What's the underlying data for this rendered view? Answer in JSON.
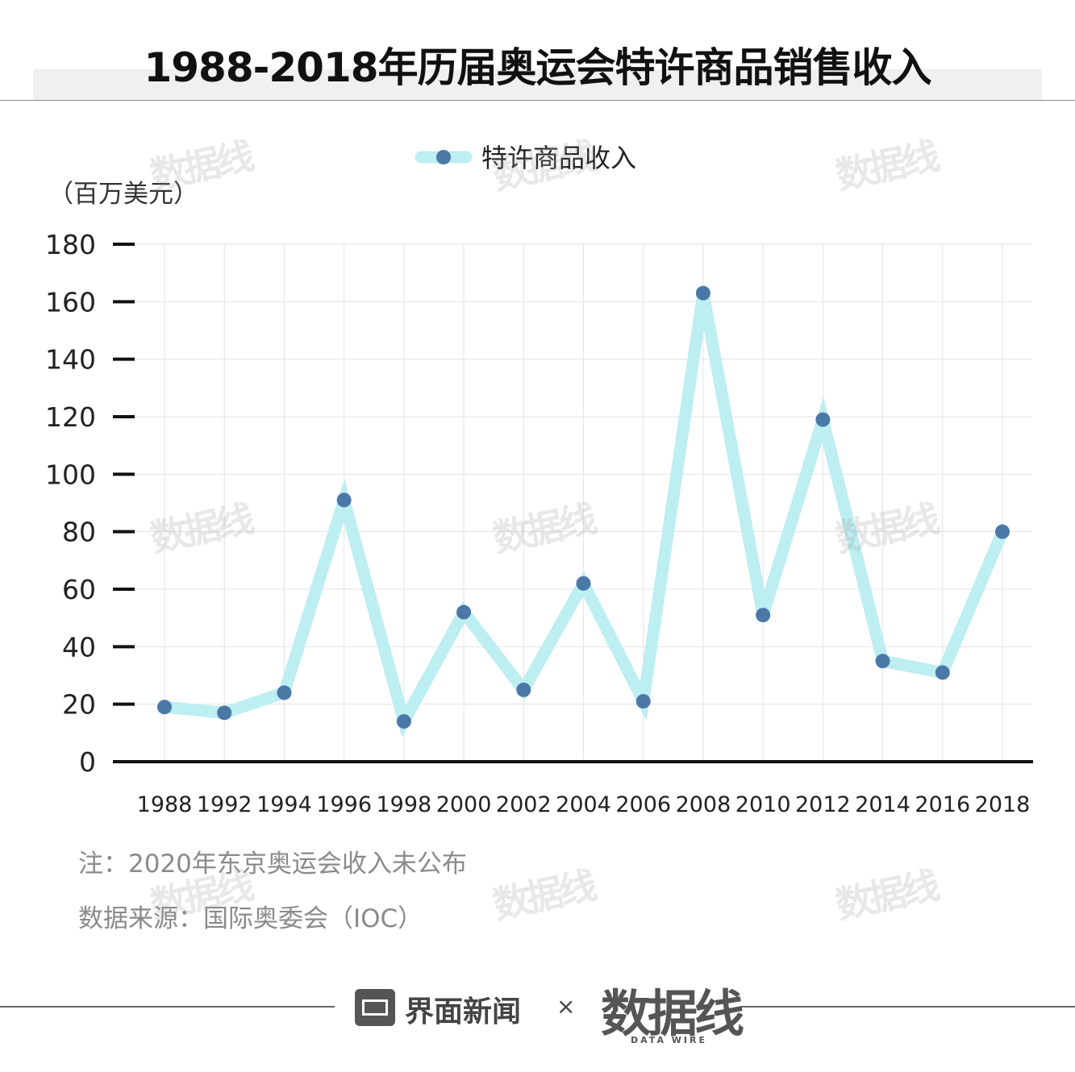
{
  "title": "1988-2018年历届奥运会特许商品销售收入",
  "unit_label": "（百万美元）",
  "colors": {
    "line": "#bdeef1",
    "marker": "#4a79a8",
    "axis": "#111111",
    "grid": "#e3e3e3"
  },
  "chart_data": {
    "type": "line",
    "title": "1988-2018年历届奥运会特许商品销售收入",
    "ylabel": "（百万美元）",
    "ylim": [
      0,
      180
    ],
    "yticks": [
      0,
      20,
      40,
      60,
      80,
      100,
      120,
      140,
      160,
      180
    ],
    "legend_position": "top-center",
    "grid": true,
    "categories": [
      "1988",
      "1992",
      "1994",
      "1996",
      "1998",
      "2000",
      "2002",
      "2004",
      "2006",
      "2008",
      "2010",
      "2012",
      "2014",
      "2016",
      "2018"
    ],
    "series": [
      {
        "name": "特许商品收入",
        "values": [
          19,
          17,
          24,
          91,
          14,
          52,
          25,
          62,
          21,
          163,
          51,
          119,
          35,
          31,
          80
        ]
      }
    ]
  },
  "notes": {
    "note": "注：2020年东京奥运会收入未公布",
    "source": "数据来源：国际奥委会（IOC）"
  },
  "footer": {
    "brand_a": "界面新闻",
    "times": "×",
    "brand_b": "数据线",
    "brand_b_sub": "DATA WIRE"
  },
  "watermark": "数据线"
}
